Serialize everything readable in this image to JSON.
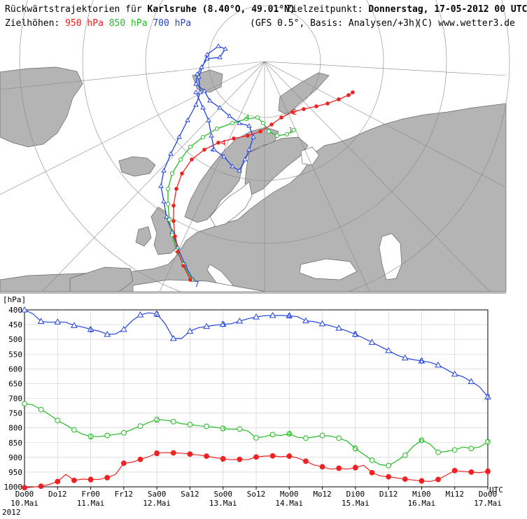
{
  "header": {
    "title_prefix": "Rückwärtstrajektorien für",
    "location": "Karlsruhe (8.40°O, 49.01°N)",
    "target_label": "Zielzeitpunkt:",
    "target_time": "Donnerstag, 17-05-2012  00 UTC",
    "levels_label": "Zielhöhen:",
    "level_950": "950 hPa",
    "level_850": "850 hPa",
    "level_700": "700 hPa",
    "model_info": "(GFS 0.5°, Basis: Analysen/+3h)",
    "copyright": "(C) www.wetter3.de"
  },
  "colors": {
    "traj_950": "#ee2222",
    "traj_850": "#22bb22",
    "traj_700": "#2244dd",
    "ocean": "#ffffff",
    "land": "#b4b4b4"
  },
  "map": {
    "projection": "polar-stereographic",
    "legs": [
      "1",
      "2",
      "3",
      "4",
      "5",
      "6",
      "7"
    ]
  },
  "chart_data": {
    "type": "line",
    "ylabel": "[hPa]",
    "xlabel": "UTC",
    "ylim": [
      1000,
      400
    ],
    "yticks": [
      400,
      450,
      500,
      550,
      600,
      650,
      700,
      750,
      800,
      850,
      900,
      950,
      1000
    ],
    "xlim_hours": [
      0,
      168
    ],
    "x_ticks": [
      "Do00",
      "Do12",
      "Fr00",
      "Fr12",
      "Sa00",
      "Sa12",
      "So00",
      "So12",
      "Mo00",
      "Mo12",
      "Di00",
      "Di12",
      "Mi00",
      "Mi12",
      "Do00"
    ],
    "x_dates": [
      "10.Mai",
      "11.Mai",
      "12.Mai",
      "13.Mai",
      "14.Mai",
      "15.Mai",
      "16.Mai",
      "17.Mai"
    ],
    "year": "2012",
    "series": [
      {
        "name": "700 hPa",
        "color": "#2244dd",
        "marker": "triangle",
        "x": [
          0,
          3,
          6,
          9,
          12,
          15,
          18,
          21,
          24,
          27,
          30,
          33,
          36,
          39,
          42,
          45,
          48,
          51,
          54,
          57,
          60,
          63,
          66,
          69,
          72,
          75,
          78,
          81,
          84,
          87,
          90,
          93,
          96,
          99,
          102,
          105,
          108,
          111,
          114,
          117,
          120,
          123,
          126,
          129,
          132,
          135,
          138,
          141,
          144,
          147,
          150,
          153,
          156,
          159,
          162,
          165,
          168
        ],
        "y": [
          400,
          413,
          439,
          442,
          441,
          442,
          453,
          458,
          466,
          472,
          483,
          482,
          466,
          437,
          417,
          410,
          414,
          447,
          497,
          497,
          472,
          461,
          456,
          452,
          449,
          447,
          438,
          430,
          424,
          420,
          419,
          419,
          420,
          423,
          437,
          440,
          447,
          454,
          462,
          472,
          483,
          496,
          510,
          524,
          538,
          553,
          563,
          569,
          573,
          578,
          587,
          602,
          618,
          627,
          643,
          661,
          695
        ]
      },
      {
        "name": "850 hPa",
        "color": "#22bb22",
        "marker": "circle",
        "x": [
          0,
          3,
          6,
          9,
          12,
          15,
          18,
          21,
          24,
          27,
          30,
          33,
          36,
          39,
          42,
          45,
          48,
          51,
          54,
          57,
          60,
          63,
          66,
          69,
          72,
          75,
          78,
          81,
          84,
          87,
          90,
          93,
          96,
          99,
          102,
          105,
          108,
          111,
          114,
          117,
          120,
          123,
          126,
          129,
          132,
          135,
          138,
          141,
          144,
          147,
          150,
          153,
          156,
          159,
          162,
          165,
          168
        ],
        "y": [
          718,
          722,
          738,
          755,
          775,
          790,
          807,
          821,
          829,
          830,
          826,
          822,
          817,
          805,
          794,
          782,
          772,
          774,
          779,
          786,
          789,
          793,
          795,
          798,
          802,
          805,
          804,
          811,
          834,
          830,
          823,
          826,
          820,
          832,
          835,
          831,
          826,
          828,
          835,
          845,
          870,
          890,
          910,
          925,
          928,
          912,
          893,
          862,
          842,
          855,
          883,
          880,
          875,
          865,
          870,
          865,
          848
        ]
      },
      {
        "name": "950 hPa",
        "color": "#ee2222",
        "marker": "dot",
        "x": [
          0,
          3,
          6,
          9,
          12,
          15,
          18,
          21,
          24,
          27,
          30,
          33,
          36,
          39,
          42,
          45,
          48,
          51,
          54,
          57,
          60,
          63,
          66,
          69,
          72,
          75,
          78,
          81,
          84,
          87,
          90,
          93,
          96,
          99,
          102,
          105,
          108,
          111,
          114,
          117,
          120,
          123,
          126,
          129,
          132,
          135,
          138,
          141,
          144,
          147,
          150,
          153,
          156,
          159,
          162,
          165,
          168
        ],
        "y": [
          1003,
          1001,
          998,
          992,
          982,
          958,
          978,
          974,
          975,
          975,
          969,
          958,
          920,
          917,
          907,
          898,
          886,
          884,
          885,
          886,
          889,
          892,
          896,
          901,
          905,
          908,
          907,
          908,
          899,
          896,
          895,
          898,
          896,
          902,
          913,
          926,
          932,
          940,
          937,
          940,
          935,
          927,
          952,
          963,
          966,
          970,
          974,
          977,
          980,
          982,
          975,
          960,
          945,
          948,
          950,
          952,
          948
        ]
      }
    ]
  }
}
